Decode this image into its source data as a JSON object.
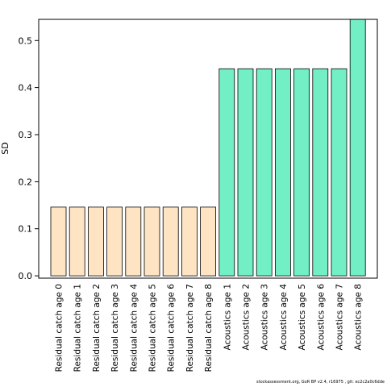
{
  "chart_data": {
    "type": "bar",
    "ylabel": "SD",
    "xlabel": "",
    "ylim": [
      -0.005,
      0.545
    ],
    "yticks": [
      0.0,
      0.1,
      0.2,
      0.3,
      0.4,
      0.5
    ],
    "ytick_labels": [
      "0.0",
      "0.1",
      "0.2",
      "0.3",
      "0.4",
      "0.5"
    ],
    "grid": false,
    "categories": [
      "Residual catch age 0",
      "Residual catch age 1",
      "Residual catch age 2",
      "Residual catch age 3",
      "Residual catch age 4",
      "Residual catch age 5",
      "Residual catch age 6",
      "Residual catch age 7",
      "Residual catch age 8",
      "Acoustics age 1",
      "Acoustics age 2",
      "Acoustics age 3",
      "Acoustics age 4",
      "Acoustics age 5",
      "Acoustics age 6",
      "Acoustics age 7",
      "Acoustics age 8"
    ],
    "values": [
      0.146,
      0.146,
      0.146,
      0.146,
      0.146,
      0.146,
      0.146,
      0.146,
      0.146,
      0.44,
      0.44,
      0.44,
      0.44,
      0.44,
      0.44,
      0.44,
      0.545
    ],
    "bar_colors": [
      "#ffe4c4",
      "#ffe4c4",
      "#ffe4c4",
      "#ffe4c4",
      "#ffe4c4",
      "#ffe4c4",
      "#ffe4c4",
      "#ffe4c4",
      "#ffe4c4",
      "#73efc6",
      "#73efc6",
      "#73efc6",
      "#73efc6",
      "#73efc6",
      "#73efc6",
      "#73efc6",
      "#73efc6"
    ]
  },
  "footer": "stockassessment.org, GoR BP  v2.4, r16975 ,  git: ec2c2a0c6dde"
}
